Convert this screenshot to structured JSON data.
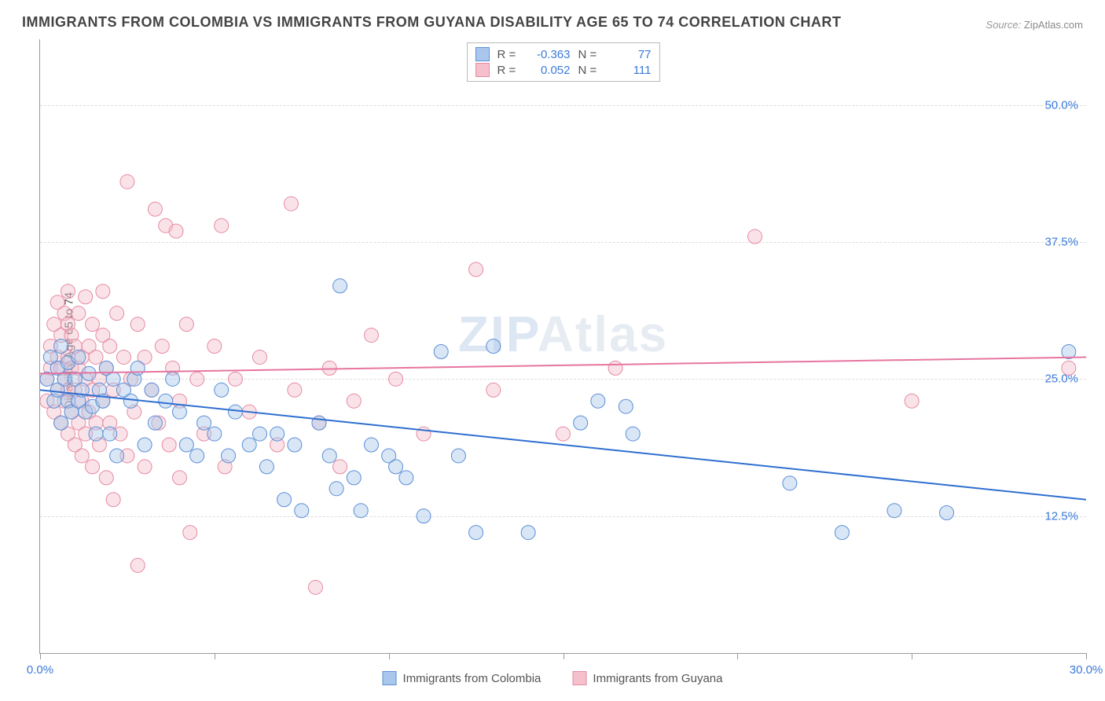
{
  "title": "IMMIGRANTS FROM COLOMBIA VS IMMIGRANTS FROM GUYANA DISABILITY AGE 65 TO 74 CORRELATION CHART",
  "source_label": "Source:",
  "source_value": "ZipAtlas.com",
  "ylabel": "Disability Age 65 to 74",
  "watermark_a": "ZIP",
  "watermark_b": "Atlas",
  "chart": {
    "type": "scatter",
    "xlim": [
      0,
      30
    ],
    "ylim": [
      0,
      56
    ],
    "yticks": [
      12.5,
      25.0,
      37.5,
      50.0
    ],
    "ytick_labels": [
      "12.5%",
      "25.0%",
      "37.5%",
      "50.0%"
    ],
    "xticks": [
      0,
      5,
      10,
      15,
      20,
      25,
      30
    ],
    "xtick_labels": {
      "0": "0.0%",
      "30": "30.0%"
    },
    "grid_color": "#dddddd",
    "background_color": "#ffffff",
    "axis_color": "#999999",
    "tick_label_color": "#3a7ad9",
    "marker_radius": 9,
    "marker_opacity": 0.45,
    "line_width": 2,
    "series": [
      {
        "name": "Immigrants from Colombia",
        "color_fill": "#a9c7ec",
        "color_stroke": "#5b8fd6",
        "line_color": "#2f6fd0",
        "R": "-0.363",
        "N": "77",
        "trend": {
          "x1": 0,
          "y1": 24.0,
          "x2": 30,
          "y2": 14.0
        },
        "points": [
          [
            0.2,
            25
          ],
          [
            0.3,
            27
          ],
          [
            0.4,
            23
          ],
          [
            0.5,
            26
          ],
          [
            0.5,
            24
          ],
          [
            0.6,
            28
          ],
          [
            0.6,
            21
          ],
          [
            0.7,
            25
          ],
          [
            0.8,
            23
          ],
          [
            0.8,
            26.5
          ],
          [
            0.9,
            22
          ],
          [
            1.0,
            25
          ],
          [
            1.1,
            27
          ],
          [
            1.1,
            23
          ],
          [
            1.2,
            24
          ],
          [
            1.3,
            22
          ],
          [
            1.4,
            25.5
          ],
          [
            1.5,
            22.5
          ],
          [
            1.6,
            20
          ],
          [
            1.7,
            24
          ],
          [
            1.8,
            23
          ],
          [
            1.9,
            26
          ],
          [
            2.0,
            20
          ],
          [
            2.1,
            25
          ],
          [
            2.2,
            18
          ],
          [
            2.4,
            24
          ],
          [
            2.6,
            23
          ],
          [
            2.7,
            25
          ],
          [
            2.8,
            26
          ],
          [
            3.0,
            19
          ],
          [
            3.2,
            24
          ],
          [
            3.3,
            21
          ],
          [
            3.6,
            23
          ],
          [
            3.8,
            25
          ],
          [
            4.0,
            22
          ],
          [
            4.2,
            19
          ],
          [
            4.5,
            18
          ],
          [
            4.7,
            21
          ],
          [
            5.0,
            20
          ],
          [
            5.2,
            24
          ],
          [
            5.4,
            18
          ],
          [
            5.6,
            22
          ],
          [
            6.0,
            19
          ],
          [
            6.3,
            20
          ],
          [
            6.5,
            17
          ],
          [
            6.8,
            20
          ],
          [
            7.0,
            14
          ],
          [
            7.3,
            19
          ],
          [
            7.5,
            13
          ],
          [
            8.0,
            21
          ],
          [
            8.3,
            18
          ],
          [
            8.5,
            15
          ],
          [
            8.6,
            33.5
          ],
          [
            9.0,
            16
          ],
          [
            9.2,
            13
          ],
          [
            9.5,
            19
          ],
          [
            10.0,
            18
          ],
          [
            10.2,
            17
          ],
          [
            10.5,
            16
          ],
          [
            11.0,
            12.5
          ],
          [
            11.5,
            27.5
          ],
          [
            12.0,
            18
          ],
          [
            12.5,
            11
          ],
          [
            13.0,
            28
          ],
          [
            14.0,
            11
          ],
          [
            15.5,
            21
          ],
          [
            16.0,
            23
          ],
          [
            16.8,
            22.5
          ],
          [
            17.0,
            20
          ],
          [
            21.5,
            15.5
          ],
          [
            23.0,
            11
          ],
          [
            24.5,
            13
          ],
          [
            26.0,
            12.8
          ],
          [
            29.5,
            27.5
          ]
        ]
      },
      {
        "name": "Immigrants from Guyana",
        "color_fill": "#f5c0cc",
        "color_stroke": "#e68aa3",
        "line_color": "#e775a0",
        "R": "0.052",
        "N": "111",
        "trend": {
          "x1": 0,
          "y1": 25.5,
          "x2": 30,
          "y2": 27.0
        },
        "points": [
          [
            0.2,
            23
          ],
          [
            0.2,
            25
          ],
          [
            0.3,
            26
          ],
          [
            0.3,
            28
          ],
          [
            0.4,
            22
          ],
          [
            0.4,
            30
          ],
          [
            0.5,
            24
          ],
          [
            0.5,
            27
          ],
          [
            0.5,
            32
          ],
          [
            0.6,
            21
          ],
          [
            0.6,
            26
          ],
          [
            0.6,
            29
          ],
          [
            0.7,
            23
          ],
          [
            0.7,
            25
          ],
          [
            0.7,
            31
          ],
          [
            0.8,
            20
          ],
          [
            0.8,
            24
          ],
          [
            0.8,
            27
          ],
          [
            0.8,
            30
          ],
          [
            0.8,
            33
          ],
          [
            0.9,
            22
          ],
          [
            0.9,
            26
          ],
          [
            0.9,
            29
          ],
          [
            1.0,
            19
          ],
          [
            1.0,
            24
          ],
          [
            1.0,
            28
          ],
          [
            1.1,
            21
          ],
          [
            1.1,
            26
          ],
          [
            1.1,
            31
          ],
          [
            1.2,
            18
          ],
          [
            1.2,
            23
          ],
          [
            1.2,
            27
          ],
          [
            1.3,
            20
          ],
          [
            1.3,
            25
          ],
          [
            1.3,
            32.5
          ],
          [
            1.4,
            22
          ],
          [
            1.4,
            28
          ],
          [
            1.5,
            17
          ],
          [
            1.5,
            24
          ],
          [
            1.5,
            30
          ],
          [
            1.6,
            21
          ],
          [
            1.6,
            27
          ],
          [
            1.7,
            19
          ],
          [
            1.7,
            25
          ],
          [
            1.8,
            23
          ],
          [
            1.8,
            29
          ],
          [
            1.8,
            33
          ],
          [
            1.9,
            16
          ],
          [
            1.9,
            26
          ],
          [
            2.0,
            21
          ],
          [
            2.0,
            28
          ],
          [
            2.1,
            14
          ],
          [
            2.1,
            24
          ],
          [
            2.2,
            31
          ],
          [
            2.3,
            20
          ],
          [
            2.4,
            27
          ],
          [
            2.5,
            43
          ],
          [
            2.5,
            18
          ],
          [
            2.6,
            25
          ],
          [
            2.7,
            22
          ],
          [
            2.8,
            30
          ],
          [
            2.8,
            8
          ],
          [
            3.0,
            27
          ],
          [
            3.0,
            17
          ],
          [
            3.2,
            24
          ],
          [
            3.3,
            40.5
          ],
          [
            3.4,
            21
          ],
          [
            3.5,
            28
          ],
          [
            3.6,
            39
          ],
          [
            3.7,
            19
          ],
          [
            3.8,
            26
          ],
          [
            3.9,
            38.5
          ],
          [
            4.0,
            16
          ],
          [
            4.0,
            23
          ],
          [
            4.2,
            30
          ],
          [
            4.3,
            11
          ],
          [
            4.5,
            25
          ],
          [
            4.7,
            20
          ],
          [
            5.0,
            28
          ],
          [
            5.2,
            39
          ],
          [
            5.3,
            17
          ],
          [
            5.6,
            25
          ],
          [
            6.0,
            22
          ],
          [
            6.3,
            27
          ],
          [
            6.8,
            19
          ],
          [
            7.2,
            41
          ],
          [
            7.3,
            24
          ],
          [
            7.9,
            6
          ],
          [
            8.0,
            21
          ],
          [
            8.3,
            26
          ],
          [
            8.6,
            17
          ],
          [
            9.0,
            23
          ],
          [
            9.5,
            29
          ],
          [
            10.2,
            25
          ],
          [
            11.0,
            20
          ],
          [
            12.5,
            35
          ],
          [
            13.0,
            24
          ],
          [
            15.0,
            20
          ],
          [
            16.5,
            26
          ],
          [
            20.5,
            38
          ],
          [
            25.0,
            23
          ],
          [
            29.5,
            26
          ]
        ]
      }
    ]
  },
  "legend_top": {
    "r_label": "R =",
    "n_label": "N ="
  },
  "legend_bottom_labels": [
    "Immigrants from Colombia",
    "Immigrants from Guyana"
  ]
}
